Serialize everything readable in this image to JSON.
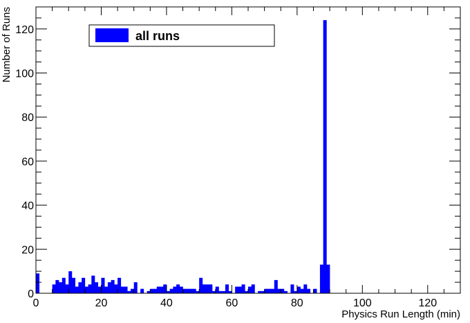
{
  "chart_data": {
    "type": "bar",
    "title": "",
    "xlabel": "Physics Run Length (min)",
    "ylabel": "Number of Runs",
    "xlim": [
      0,
      130
    ],
    "ylim": [
      0,
      130
    ],
    "x_ticks": [
      0,
      20,
      40,
      60,
      80,
      100,
      120
    ],
    "y_ticks": [
      0,
      20,
      40,
      60,
      80,
      100,
      120
    ],
    "bin_width": 1,
    "legend": {
      "position": "top-left",
      "entries": [
        {
          "label": "all runs",
          "color": "#0000ff"
        }
      ]
    },
    "series": [
      {
        "name": "all runs",
        "color": "#0000ff",
        "bins": [
          [
            0,
            9
          ],
          [
            5,
            4
          ],
          [
            6,
            6
          ],
          [
            7,
            5
          ],
          [
            8,
            7
          ],
          [
            9,
            4
          ],
          [
            10,
            10
          ],
          [
            11,
            7
          ],
          [
            12,
            3
          ],
          [
            13,
            5
          ],
          [
            14,
            7
          ],
          [
            15,
            3
          ],
          [
            16,
            4
          ],
          [
            17,
            8
          ],
          [
            18,
            5
          ],
          [
            19,
            3
          ],
          [
            20,
            7
          ],
          [
            21,
            3
          ],
          [
            22,
            5
          ],
          [
            23,
            6
          ],
          [
            24,
            4
          ],
          [
            25,
            7
          ],
          [
            26,
            3
          ],
          [
            27,
            3
          ],
          [
            28,
            1
          ],
          [
            29,
            2
          ],
          [
            30,
            5
          ],
          [
            32,
            2
          ],
          [
            34,
            1
          ],
          [
            35,
            2
          ],
          [
            36,
            2
          ],
          [
            37,
            3
          ],
          [
            38,
            3
          ],
          [
            39,
            4
          ],
          [
            40,
            1
          ],
          [
            41,
            2
          ],
          [
            42,
            3
          ],
          [
            43,
            4
          ],
          [
            44,
            3
          ],
          [
            45,
            2
          ],
          [
            46,
            2
          ],
          [
            47,
            2
          ],
          [
            48,
            2
          ],
          [
            49,
            1
          ],
          [
            50,
            7
          ],
          [
            51,
            4
          ],
          [
            52,
            4
          ],
          [
            53,
            4
          ],
          [
            54,
            1
          ],
          [
            55,
            3
          ],
          [
            56,
            1
          ],
          [
            57,
            1
          ],
          [
            58,
            4
          ],
          [
            59,
            1
          ],
          [
            61,
            3
          ],
          [
            62,
            3
          ],
          [
            63,
            4
          ],
          [
            64,
            1
          ],
          [
            65,
            3
          ],
          [
            66,
            4
          ],
          [
            68,
            1
          ],
          [
            69,
            1
          ],
          [
            70,
            2
          ],
          [
            71,
            2
          ],
          [
            72,
            2
          ],
          [
            73,
            6
          ],
          [
            74,
            2
          ],
          [
            75,
            2
          ],
          [
            76,
            1
          ],
          [
            78,
            4
          ],
          [
            79,
            1
          ],
          [
            80,
            3
          ],
          [
            81,
            2
          ],
          [
            82,
            4
          ],
          [
            83,
            2
          ],
          [
            85,
            2
          ],
          [
            87,
            13
          ],
          [
            88,
            124
          ],
          [
            89,
            13
          ]
        ]
      }
    ]
  }
}
